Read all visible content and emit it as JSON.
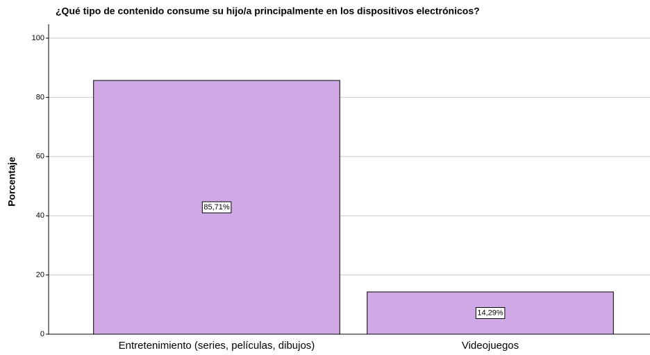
{
  "chart_data": {
    "type": "bar",
    "title": "¿Qué tipo de contenido consume su hijo/a principalmente en los dispositivos electrónicos?",
    "y_label": "Porcentaje",
    "categories": [
      "Entretenimiento (series, películas, dibujos)",
      "Videojuegos"
    ],
    "values": [
      85.71,
      14.29
    ],
    "value_labels": [
      "85,71%",
      "14,29%"
    ],
    "color": "#cfa8e6",
    "ylim": [
      0,
      100
    ],
    "yticks": [
      0,
      20,
      40,
      60,
      80,
      100
    ],
    "grid": true
  }
}
